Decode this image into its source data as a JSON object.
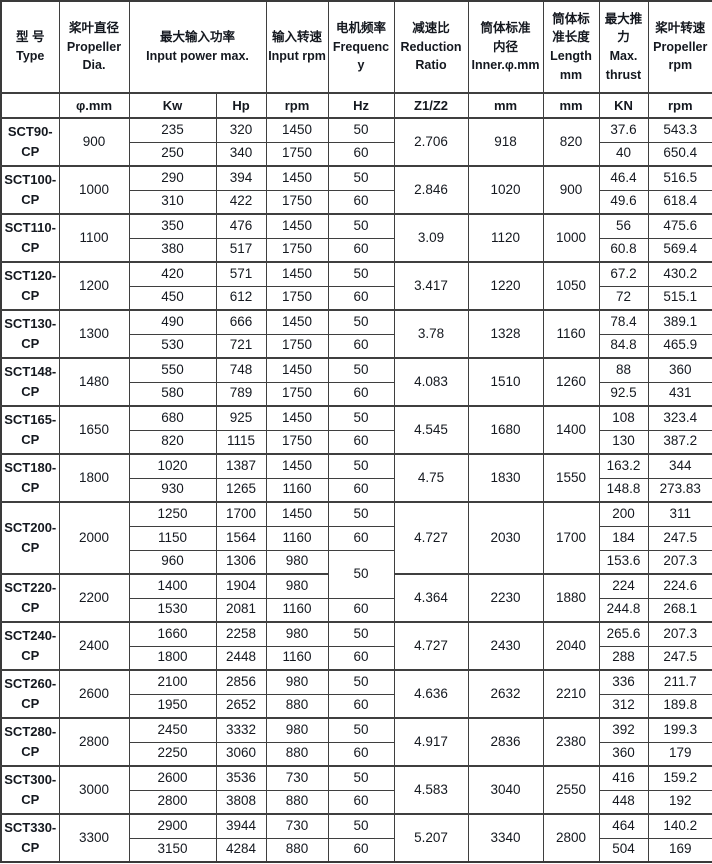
{
  "colors": {
    "background": "#ffffff",
    "border": "#3f3f3f",
    "text": "#14181f"
  },
  "table": {
    "header_cells": [
      {
        "id": "type",
        "colspan": 1,
        "label": "型 号\nType"
      },
      {
        "id": "propeller-dia",
        "colspan": 1,
        "label": "桨叶直径\nPropeller\nDia."
      },
      {
        "id": "input-power",
        "colspan": 2,
        "label": "最大输入功率\nInput power max."
      },
      {
        "id": "input-rpm",
        "colspan": 1,
        "label": "输入转速\nInput rpm"
      },
      {
        "id": "frequency",
        "colspan": 1,
        "label": "电机频率\nFrequency"
      },
      {
        "id": "reduction-ratio",
        "colspan": 1,
        "label": "减速比\nReduction\nRatio"
      },
      {
        "id": "inner-diameter",
        "colspan": 1,
        "label": "筒体标准\n内径\nInner.φ.mm"
      },
      {
        "id": "length",
        "colspan": 1,
        "label": "筒体标\n准长度\nLength\nmm"
      },
      {
        "id": "max-thrust",
        "colspan": 1,
        "label": "最大推\n力\nMax.\nthrust"
      },
      {
        "id": "propeller-rpm",
        "colspan": 1,
        "label": "桨叶转速\nPropeller\nrpm"
      }
    ],
    "unit_ids": [
      "type",
      "propeller-dia",
      "kw",
      "hp",
      "input-rpm",
      "hz",
      "ratio",
      "inner-mm",
      "length-mm",
      "kn",
      "propeller-rpm"
    ],
    "unit_cells": [
      "",
      "φ.mm",
      "Kw",
      "Hp",
      "rpm",
      "Hz",
      "Z1/Z2",
      "mm",
      "mm",
      "KN",
      "rpm"
    ],
    "groups": [
      {
        "type": "SCT90-CP",
        "dia": "900",
        "ratio": "2.706",
        "inner": "918",
        "length": "820",
        "rows": [
          {
            "kw": "235",
            "hp": "320",
            "rpm": "1450",
            "hz": "50",
            "kn": "37.6",
            "prpm": "543.3"
          },
          {
            "kw": "250",
            "hp": "340",
            "rpm": "1750",
            "hz": "60",
            "kn": "40",
            "prpm": "650.4"
          }
        ]
      },
      {
        "type": "SCT100-CP",
        "dia": "1000",
        "ratio": "2.846",
        "inner": "1020",
        "length": "900",
        "rows": [
          {
            "kw": "290",
            "hp": "394",
            "rpm": "1450",
            "hz": "50",
            "kn": "46.4",
            "prpm": "516.5"
          },
          {
            "kw": "310",
            "hp": "422",
            "rpm": "1750",
            "hz": "60",
            "kn": "49.6",
            "prpm": "618.4"
          }
        ]
      },
      {
        "type": "SCT110-CP",
        "dia": "1100",
        "ratio": "3.09",
        "inner": "1120",
        "length": "1000",
        "rows": [
          {
            "kw": "350",
            "hp": "476",
            "rpm": "1450",
            "hz": "50",
            "kn": "56",
            "prpm": "475.6"
          },
          {
            "kw": "380",
            "hp": "517",
            "rpm": "1750",
            "hz": "60",
            "kn": "60.8",
            "prpm": "569.4"
          }
        ]
      },
      {
        "type": "SCT120-CP",
        "dia": "1200",
        "ratio": "3.417",
        "inner": "1220",
        "length": "1050",
        "rows": [
          {
            "kw": "420",
            "hp": "571",
            "rpm": "1450",
            "hz": "50",
            "kn": "67.2",
            "prpm": "430.2"
          },
          {
            "kw": "450",
            "hp": "612",
            "rpm": "1750",
            "hz": "60",
            "kn": "72",
            "prpm": "515.1"
          }
        ]
      },
      {
        "type": "SCT130-CP",
        "dia": "1300",
        "ratio": "3.78",
        "inner": "1328",
        "length": "1160",
        "rows": [
          {
            "kw": "490",
            "hp": "666",
            "rpm": "1450",
            "hz": "50",
            "kn": "78.4",
            "prpm": "389.1"
          },
          {
            "kw": "530",
            "hp": "721",
            "rpm": "1750",
            "hz": "60",
            "kn": "84.8",
            "prpm": "465.9"
          }
        ]
      },
      {
        "type": "SCT148-CP",
        "dia": "1480",
        "ratio": "4.083",
        "inner": "1510",
        "length": "1260",
        "rows": [
          {
            "kw": "550",
            "hp": "748",
            "rpm": "1450",
            "hz": "50",
            "kn": "88",
            "prpm": "360"
          },
          {
            "kw": "580",
            "hp": "789",
            "rpm": "1750",
            "hz": "60",
            "kn": "92.5",
            "prpm": "431"
          }
        ]
      },
      {
        "type": "SCT165-CP",
        "dia": "1650",
        "ratio": "4.545",
        "inner": "1680",
        "length": "1400",
        "rows": [
          {
            "kw": "680",
            "hp": "925",
            "rpm": "1450",
            "hz": "50",
            "kn": "108",
            "prpm": "323.4"
          },
          {
            "kw": "820",
            "hp": "1115",
            "rpm": "1750",
            "hz": "60",
            "kn": "130",
            "prpm": "387.2"
          }
        ]
      },
      {
        "type": "SCT180-CP",
        "dia": "1800",
        "ratio": "4.75",
        "inner": "1830",
        "length": "1550",
        "rows": [
          {
            "kw": "1020",
            "hp": "1387",
            "rpm": "1450",
            "hz": "50",
            "kn": "163.2",
            "prpm": "344"
          },
          {
            "kw": "930",
            "hp": "1265",
            "rpm": "1160",
            "hz": "60",
            "kn": "148.8",
            "prpm": "273.83"
          }
        ]
      },
      {
        "type": "SCT200-CP",
        "dia": "2000",
        "ratio": "4.727",
        "inner": "2030",
        "length": "1700",
        "rows": [
          {
            "kw": "1250",
            "hp": "1700",
            "rpm": "1450",
            "hz": "50",
            "kn": "200",
            "prpm": "311"
          },
          {
            "kw": "1150",
            "hp": "1564",
            "rpm": "1160",
            "hz": "60",
            "kn": "184",
            "prpm": "247.5"
          },
          {
            "kw": "960",
            "hp": "1306",
            "rpm": "980",
            "hz": "50",
            "hz_rowspan": 2,
            "kn": "153.6",
            "prpm": "207.3"
          }
        ]
      },
      {
        "type": "SCT220-CP",
        "dia": "2200",
        "ratio": "4.364",
        "inner": "2230",
        "length": "1880",
        "rows": [
          {
            "kw": "1400",
            "hp": "1904",
            "rpm": "980",
            "hz": null,
            "kn": "224",
            "prpm": "224.6"
          },
          {
            "kw": "1530",
            "hp": "2081",
            "rpm": "1160",
            "hz": "60",
            "kn": "244.8",
            "prpm": "268.1"
          }
        ]
      },
      {
        "type": "SCT240-CP",
        "dia": "2400",
        "ratio": "4.727",
        "inner": "2430",
        "length": "2040",
        "rows": [
          {
            "kw": "1660",
            "hp": "2258",
            "rpm": "980",
            "hz": "50",
            "kn": "265.6",
            "prpm": "207.3"
          },
          {
            "kw": "1800",
            "hp": "2448",
            "rpm": "1160",
            "hz": "60",
            "kn": "288",
            "prpm": "247.5"
          }
        ]
      },
      {
        "type": "SCT260-CP",
        "dia": "2600",
        "ratio": "4.636",
        "inner": "2632",
        "length": "2210",
        "rows": [
          {
            "kw": "2100",
            "hp": "2856",
            "rpm": "980",
            "hz": "50",
            "kn": "336",
            "prpm": "211.7"
          },
          {
            "kw": "1950",
            "hp": "2652",
            "rpm": "880",
            "hz": "60",
            "kn": "312",
            "prpm": "189.8"
          }
        ]
      },
      {
        "type": "SCT280-CP",
        "dia": "2800",
        "ratio": "4.917",
        "inner": "2836",
        "length": "2380",
        "rows": [
          {
            "kw": "2450",
            "hp": "3332",
            "rpm": "980",
            "hz": "50",
            "kn": "392",
            "prpm": "199.3"
          },
          {
            "kw": "2250",
            "hp": "3060",
            "rpm": "880",
            "hz": "60",
            "kn": "360",
            "prpm": "179"
          }
        ]
      },
      {
        "type": "SCT300-CP",
        "dia": "3000",
        "ratio": "4.583",
        "inner": "3040",
        "length": "2550",
        "rows": [
          {
            "kw": "2600",
            "hp": "3536",
            "rpm": "730",
            "hz": "50",
            "kn": "416",
            "prpm": "159.2"
          },
          {
            "kw": "2800",
            "hp": "3808",
            "rpm": "880",
            "hz": "60",
            "kn": "448",
            "prpm": "192"
          }
        ]
      },
      {
        "type": "SCT330-CP",
        "dia": "3300",
        "ratio": "5.207",
        "inner": "3340",
        "length": "2800",
        "rows": [
          {
            "kw": "2900",
            "hp": "3944",
            "rpm": "730",
            "hz": "50",
            "kn": "464",
            "prpm": "140.2"
          },
          {
            "kw": "3150",
            "hp": "4284",
            "rpm": "880",
            "hz": "60",
            "kn": "504",
            "prpm": "169"
          }
        ]
      }
    ]
  }
}
